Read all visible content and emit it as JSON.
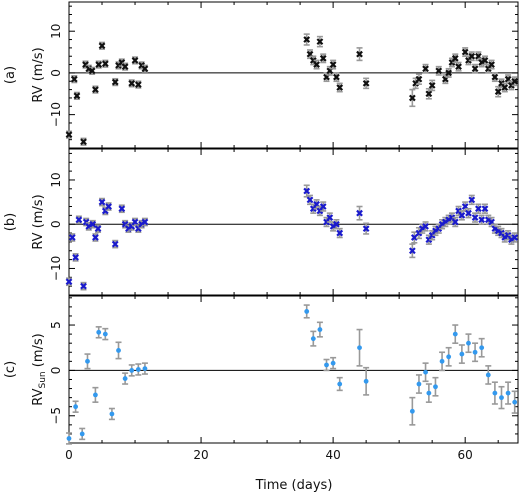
{
  "chart_data": [
    {
      "panel_label": "(a)",
      "type": "scatter",
      "ylabel": "RV  (m/s)",
      "ylim": [
        -18,
        17
      ],
      "yticks": [
        -10,
        0,
        10
      ],
      "xlim": [
        0,
        68
      ],
      "marker_color": "#111111",
      "marker": "x",
      "points": [
        {
          "x": 0.0,
          "y": -14.8,
          "e": 0.8
        },
        {
          "x": 0.8,
          "y": -1.5,
          "e": 0.8
        },
        {
          "x": 1.2,
          "y": -5.5,
          "e": 0.8
        },
        {
          "x": 2.2,
          "y": -16.5,
          "e": 0.8
        },
        {
          "x": 2.5,
          "y": 2.0,
          "e": 0.8
        },
        {
          "x": 3.0,
          "y": 1.0,
          "e": 0.8
        },
        {
          "x": 3.5,
          "y": 0.5,
          "e": 0.8
        },
        {
          "x": 4.0,
          "y": -4.0,
          "e": 0.8
        },
        {
          "x": 4.5,
          "y": 2.0,
          "e": 0.8
        },
        {
          "x": 5.0,
          "y": 6.5,
          "e": 0.8
        },
        {
          "x": 5.5,
          "y": 2.2,
          "e": 0.8
        },
        {
          "x": 7.0,
          "y": -2.2,
          "e": 0.8
        },
        {
          "x": 7.5,
          "y": 1.8,
          "e": 0.8
        },
        {
          "x": 8.0,
          "y": 2.5,
          "e": 0.8
        },
        {
          "x": 8.5,
          "y": 1.5,
          "e": 0.8
        },
        {
          "x": 9.5,
          "y": -2.5,
          "e": 0.8
        },
        {
          "x": 10.0,
          "y": 3.0,
          "e": 0.8
        },
        {
          "x": 10.5,
          "y": -2.8,
          "e": 0.8
        },
        {
          "x": 11.0,
          "y": 1.8,
          "e": 0.8
        },
        {
          "x": 11.5,
          "y": 1.0,
          "e": 0.8
        },
        {
          "x": 36.0,
          "y": 8.0,
          "e": 1.3
        },
        {
          "x": 36.5,
          "y": 4.5,
          "e": 1.0
        },
        {
          "x": 37.0,
          "y": 3.0,
          "e": 1.0
        },
        {
          "x": 37.5,
          "y": 2.0,
          "e": 1.0
        },
        {
          "x": 38.0,
          "y": 7.5,
          "e": 1.2
        },
        {
          "x": 38.5,
          "y": 3.5,
          "e": 1.0
        },
        {
          "x": 39.0,
          "y": -1.0,
          "e": 1.0
        },
        {
          "x": 39.5,
          "y": 0.5,
          "e": 1.0
        },
        {
          "x": 40.0,
          "y": 2.0,
          "e": 1.0
        },
        {
          "x": 40.5,
          "y": -1.0,
          "e": 1.0
        },
        {
          "x": 41.0,
          "y": -3.5,
          "e": 1.0
        },
        {
          "x": 44.0,
          "y": 4.5,
          "e": 1.5
        },
        {
          "x": 45.0,
          "y": -2.5,
          "e": 1.2
        },
        {
          "x": 52.0,
          "y": -6.0,
          "e": 2.0
        },
        {
          "x": 52.5,
          "y": -2.5,
          "e": 1.2
        },
        {
          "x": 53.0,
          "y": -1.5,
          "e": 1.2
        },
        {
          "x": 54.0,
          "y": 1.0,
          "e": 1.0
        },
        {
          "x": 54.5,
          "y": -5.0,
          "e": 1.2
        },
        {
          "x": 55.0,
          "y": -3.0,
          "e": 1.2
        },
        {
          "x": 56.0,
          "y": 0.5,
          "e": 1.0
        },
        {
          "x": 57.0,
          "y": -1.5,
          "e": 1.0
        },
        {
          "x": 57.5,
          "y": 0.0,
          "e": 1.0
        },
        {
          "x": 58.0,
          "y": 2.5,
          "e": 1.0
        },
        {
          "x": 58.5,
          "y": 3.5,
          "e": 1.0
        },
        {
          "x": 59.0,
          "y": 1.5,
          "e": 1.0
        },
        {
          "x": 60.0,
          "y": 5.0,
          "e": 1.0
        },
        {
          "x": 60.5,
          "y": 3.0,
          "e": 1.0
        },
        {
          "x": 61.0,
          "y": 4.0,
          "e": 1.0
        },
        {
          "x": 61.5,
          "y": 1.0,
          "e": 1.0
        },
        {
          "x": 62.0,
          "y": 4.0,
          "e": 1.0
        },
        {
          "x": 62.5,
          "y": 2.5,
          "e": 1.0
        },
        {
          "x": 63.0,
          "y": 3.0,
          "e": 1.0
        },
        {
          "x": 63.5,
          "y": 1.0,
          "e": 1.0
        },
        {
          "x": 64.0,
          "y": 2.0,
          "e": 1.0
        },
        {
          "x": 64.5,
          "y": -1.0,
          "e": 1.0
        },
        {
          "x": 65.0,
          "y": -4.5,
          "e": 1.2
        },
        {
          "x": 65.5,
          "y": -2.5,
          "e": 1.0
        },
        {
          "x": 66.0,
          "y": -3.5,
          "e": 1.0
        },
        {
          "x": 66.5,
          "y": -1.5,
          "e": 1.0
        },
        {
          "x": 67.0,
          "y": -3.0,
          "e": 1.0
        },
        {
          "x": 67.5,
          "y": -2.0,
          "e": 1.0
        }
      ]
    },
    {
      "panel_label": "(b)",
      "type": "scatter",
      "ylabel": "RV  (m/s)",
      "ylim": [
        -16,
        17
      ],
      "yticks": [
        -10,
        0,
        10
      ],
      "xlim": [
        0,
        68
      ],
      "marker_color": "#1a1acc",
      "marker": "x",
      "points": [
        {
          "x": 0.0,
          "y": -13.0,
          "e": 0.8
        },
        {
          "x": 0.5,
          "y": -3.0,
          "e": 0.8
        },
        {
          "x": 1.0,
          "y": -7.5,
          "e": 0.8
        },
        {
          "x": 1.5,
          "y": 1.0,
          "e": 0.8
        },
        {
          "x": 2.2,
          "y": -14.0,
          "e": 0.8
        },
        {
          "x": 2.6,
          "y": 0.5,
          "e": 0.8
        },
        {
          "x": 3.0,
          "y": -0.5,
          "e": 0.8
        },
        {
          "x": 3.6,
          "y": 0.0,
          "e": 0.8
        },
        {
          "x": 4.0,
          "y": -3.0,
          "e": 0.8
        },
        {
          "x": 4.4,
          "y": -1.0,
          "e": 0.8
        },
        {
          "x": 5.0,
          "y": 5.0,
          "e": 0.8
        },
        {
          "x": 5.5,
          "y": 3.0,
          "e": 0.8
        },
        {
          "x": 6.0,
          "y": 4.0,
          "e": 0.8
        },
        {
          "x": 7.0,
          "y": -4.5,
          "e": 0.8
        },
        {
          "x": 8.0,
          "y": 3.5,
          "e": 0.8
        },
        {
          "x": 8.5,
          "y": 0.0,
          "e": 0.8
        },
        {
          "x": 9.0,
          "y": -1.0,
          "e": 0.8
        },
        {
          "x": 9.5,
          "y": -0.5,
          "e": 0.8
        },
        {
          "x": 10.0,
          "y": 0.5,
          "e": 0.8
        },
        {
          "x": 10.5,
          "y": -1.0,
          "e": 0.8
        },
        {
          "x": 11.0,
          "y": 0.0,
          "e": 0.8
        },
        {
          "x": 11.5,
          "y": 0.5,
          "e": 0.8
        },
        {
          "x": 36.0,
          "y": 7.5,
          "e": 1.3
        },
        {
          "x": 36.5,
          "y": 5.5,
          "e": 1.0
        },
        {
          "x": 37.0,
          "y": 3.5,
          "e": 1.0
        },
        {
          "x": 37.5,
          "y": 4.5,
          "e": 1.0
        },
        {
          "x": 38.0,
          "y": 3.0,
          "e": 1.0
        },
        {
          "x": 38.5,
          "y": 4.0,
          "e": 1.0
        },
        {
          "x": 39.0,
          "y": 0.5,
          "e": 1.0
        },
        {
          "x": 39.5,
          "y": 1.5,
          "e": 1.0
        },
        {
          "x": 40.0,
          "y": -0.5,
          "e": 1.0
        },
        {
          "x": 40.5,
          "y": 0.0,
          "e": 1.0
        },
        {
          "x": 41.0,
          "y": -2.0,
          "e": 1.0
        },
        {
          "x": 44.0,
          "y": 2.5,
          "e": 1.5
        },
        {
          "x": 45.0,
          "y": -1.0,
          "e": 1.2
        },
        {
          "x": 52.0,
          "y": -6.0,
          "e": 1.5
        },
        {
          "x": 52.3,
          "y": -3.0,
          "e": 1.2
        },
        {
          "x": 53.0,
          "y": -2.0,
          "e": 1.2
        },
        {
          "x": 53.5,
          "y": -1.0,
          "e": 1.0
        },
        {
          "x": 54.0,
          "y": -0.5,
          "e": 1.0
        },
        {
          "x": 54.5,
          "y": -3.5,
          "e": 1.0
        },
        {
          "x": 55.0,
          "y": -2.5,
          "e": 1.0
        },
        {
          "x": 55.5,
          "y": -1.5,
          "e": 1.0
        },
        {
          "x": 56.0,
          "y": -1.0,
          "e": 1.0
        },
        {
          "x": 56.5,
          "y": 0.0,
          "e": 1.0
        },
        {
          "x": 57.0,
          "y": 0.5,
          "e": 1.0
        },
        {
          "x": 57.5,
          "y": 1.0,
          "e": 1.0
        },
        {
          "x": 58.0,
          "y": 1.5,
          "e": 1.0
        },
        {
          "x": 58.5,
          "y": 0.5,
          "e": 1.0
        },
        {
          "x": 59.0,
          "y": 3.0,
          "e": 1.0
        },
        {
          "x": 59.5,
          "y": 2.0,
          "e": 1.0
        },
        {
          "x": 60.0,
          "y": 4.0,
          "e": 1.0
        },
        {
          "x": 60.5,
          "y": 2.5,
          "e": 1.0
        },
        {
          "x": 61.0,
          "y": 5.5,
          "e": 1.0
        },
        {
          "x": 61.5,
          "y": 1.5,
          "e": 1.0
        },
        {
          "x": 62.0,
          "y": 3.5,
          "e": 1.0
        },
        {
          "x": 62.5,
          "y": 1.0,
          "e": 1.0
        },
        {
          "x": 63.0,
          "y": 3.5,
          "e": 1.0
        },
        {
          "x": 63.5,
          "y": 1.0,
          "e": 1.0
        },
        {
          "x": 64.0,
          "y": 0.5,
          "e": 1.0
        },
        {
          "x": 64.5,
          "y": -1.0,
          "e": 1.0
        },
        {
          "x": 65.0,
          "y": -1.5,
          "e": 1.0
        },
        {
          "x": 65.5,
          "y": -2.0,
          "e": 1.0
        },
        {
          "x": 66.0,
          "y": -3.0,
          "e": 1.0
        },
        {
          "x": 66.5,
          "y": -2.5,
          "e": 1.0
        },
        {
          "x": 67.0,
          "y": -3.5,
          "e": 1.0
        },
        {
          "x": 67.5,
          "y": -3.0,
          "e": 1.0
        }
      ]
    },
    {
      "panel_label": "(c)",
      "type": "scatter",
      "ylabel": "RV",
      "ylabel_sub": "Sun",
      "ylabel_unit": " (m/s)",
      "ylim": [
        -8,
        8.2
      ],
      "yticks": [
        -5,
        0,
        5
      ],
      "xlim": [
        0,
        68
      ],
      "marker_color": "#3399ee",
      "marker": "dot",
      "points": [
        {
          "x": 0.0,
          "y": -7.5,
          "e": 0.6
        },
        {
          "x": 1.0,
          "y": -4.0,
          "e": 0.6
        },
        {
          "x": 2.0,
          "y": -7.0,
          "e": 0.6
        },
        {
          "x": 2.8,
          "y": 1.0,
          "e": 0.8
        },
        {
          "x": 4.0,
          "y": -2.7,
          "e": 0.8
        },
        {
          "x": 4.5,
          "y": 4.2,
          "e": 0.6
        },
        {
          "x": 5.5,
          "y": 4.0,
          "e": 0.6
        },
        {
          "x": 6.5,
          "y": -4.8,
          "e": 0.6
        },
        {
          "x": 7.5,
          "y": 2.2,
          "e": 0.9
        },
        {
          "x": 8.5,
          "y": -0.9,
          "e": 0.6
        },
        {
          "x": 9.5,
          "y": 0.0,
          "e": 0.6
        },
        {
          "x": 10.5,
          "y": 0.1,
          "e": 0.6
        },
        {
          "x": 11.5,
          "y": 0.2,
          "e": 0.6
        },
        {
          "x": 36.0,
          "y": 6.5,
          "e": 0.7
        },
        {
          "x": 37.0,
          "y": 3.5,
          "e": 0.8
        },
        {
          "x": 38.0,
          "y": 4.5,
          "e": 0.8
        },
        {
          "x": 39.0,
          "y": 0.6,
          "e": 0.6
        },
        {
          "x": 40.0,
          "y": 0.8,
          "e": 0.6
        },
        {
          "x": 41.0,
          "y": -1.5,
          "e": 0.7
        },
        {
          "x": 44.0,
          "y": 2.5,
          "e": 2.0
        },
        {
          "x": 45.0,
          "y": -1.2,
          "e": 1.5
        },
        {
          "x": 52.0,
          "y": -4.5,
          "e": 1.5
        },
        {
          "x": 53.0,
          "y": -1.5,
          "e": 1.0
        },
        {
          "x": 54.0,
          "y": -0.2,
          "e": 1.0
        },
        {
          "x": 54.5,
          "y": -2.5,
          "e": 1.0
        },
        {
          "x": 55.5,
          "y": -1.8,
          "e": 1.0
        },
        {
          "x": 56.5,
          "y": 1.0,
          "e": 1.0
        },
        {
          "x": 57.5,
          "y": 1.5,
          "e": 1.0
        },
        {
          "x": 58.5,
          "y": 4.0,
          "e": 1.0
        },
        {
          "x": 59.5,
          "y": 1.8,
          "e": 1.0
        },
        {
          "x": 60.5,
          "y": 3.0,
          "e": 1.0
        },
        {
          "x": 61.5,
          "y": 2.0,
          "e": 1.0
        },
        {
          "x": 62.5,
          "y": 2.5,
          "e": 1.0
        },
        {
          "x": 63.5,
          "y": -0.5,
          "e": 1.0
        },
        {
          "x": 64.5,
          "y": -2.5,
          "e": 1.2
        },
        {
          "x": 65.5,
          "y": -3.0,
          "e": 1.2
        },
        {
          "x": 66.5,
          "y": -2.5,
          "e": 1.2
        },
        {
          "x": 67.5,
          "y": -3.5,
          "e": 1.2
        }
      ]
    }
  ],
  "xaxis": {
    "label": "Time (days)",
    "ticks": [
      0,
      20,
      40,
      60
    ],
    "minor_every": 5
  },
  "error_bar_color": "#999999",
  "axis_color": "#000000"
}
